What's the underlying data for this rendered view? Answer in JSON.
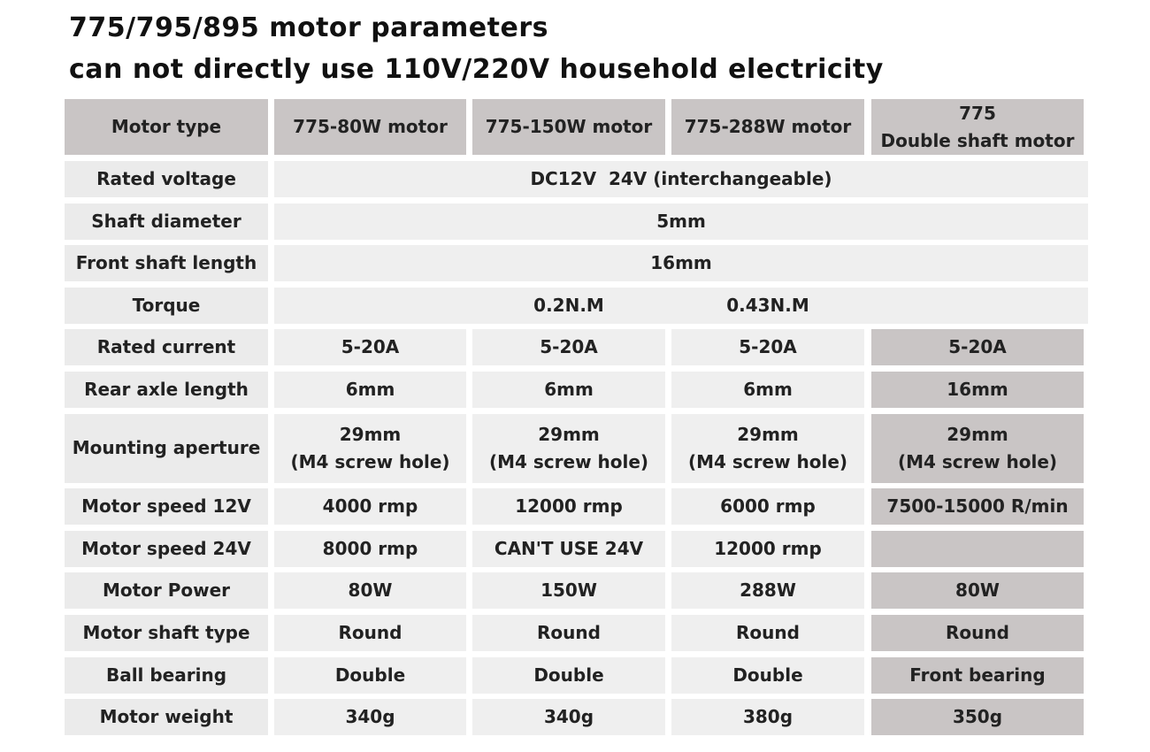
{
  "title_lines": [
    "775/795/895 motor parameters",
    "can not directly use 110V/220V household electricity"
  ],
  "table": {
    "header": [
      "Motor type",
      "775-80W motor",
      "775-150W motor",
      "775-288W motor",
      [
        "775",
        "Double shaft motor"
      ]
    ],
    "rows": [
      {
        "label": "Rated voltage",
        "span": "DC12V  24V (interchangeable)"
      },
      {
        "label": "Shaft diameter",
        "span": "5mm"
      },
      {
        "label": "Front shaft length",
        "span": "16mm"
      },
      {
        "label": "Torque",
        "span_parts": [
          "0.2N.M",
          "0.43N.M"
        ]
      },
      {
        "label": "Rated current",
        "cells": [
          "5-20A",
          "5-20A",
          "5-20A",
          "5-20A"
        ]
      },
      {
        "label": "Rear axle length",
        "cells": [
          "6mm",
          "6mm",
          "6mm",
          "16mm"
        ]
      },
      {
        "label": "Mounting aperture",
        "cells": [
          [
            "29mm",
            "(M4 screw hole)"
          ],
          [
            "29mm",
            "(M4 screw hole)"
          ],
          [
            "29mm",
            "(M4 screw hole)"
          ],
          [
            "29mm",
            "(M4 screw hole)"
          ]
        ]
      },
      {
        "label": "Motor speed 12V",
        "cells": [
          "4000 rmp",
          "12000 rmp",
          "6000 rmp",
          "7500-15000 R/min"
        ]
      },
      {
        "label": "Motor speed 24V",
        "cells": [
          "8000 rmp",
          "CAN'T USE 24V",
          "12000 rmp",
          null
        ]
      },
      {
        "label": "Motor Power",
        "cells": [
          "80W",
          "150W",
          "288W",
          "80W"
        ]
      },
      {
        "label": "Motor shaft type",
        "cells": [
          "Round",
          "Round",
          "Round",
          "Round"
        ]
      },
      {
        "label": "Ball bearing",
        "cells": [
          "Double",
          "Double",
          "Double",
          "Front bearing"
        ]
      },
      {
        "label": "Motor weight",
        "cells": [
          "340g",
          "340g",
          "380g",
          "350g"
        ]
      }
    ]
  }
}
